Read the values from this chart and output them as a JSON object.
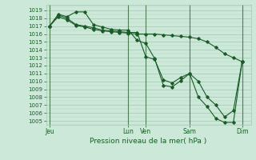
{
  "title": "Pression niveau de la mer( hPa )",
  "background_color": "#cce8d8",
  "grid_color_major": "#a0c8b0",
  "grid_color_minor": "#b8d8c4",
  "line_color": "#1a5c28",
  "vline_color": "#2a5c2a",
  "ylim": [
    1004.5,
    1019.7
  ],
  "yticks": [
    1005,
    1006,
    1007,
    1008,
    1009,
    1010,
    1011,
    1012,
    1013,
    1014,
    1015,
    1016,
    1017,
    1018,
    1019
  ],
  "xtick_labels": [
    "Jeu",
    "Lun",
    "Ven",
    "Sam",
    "Dim"
  ],
  "xtick_positions": [
    0,
    45,
    55,
    80,
    110
  ],
  "xlim": [
    -2,
    115
  ],
  "vline_positions": [
    0,
    45,
    55,
    80,
    110
  ],
  "line1_x": [
    0,
    5,
    10,
    15,
    20,
    25,
    30,
    35,
    40,
    45,
    50,
    55,
    60,
    65,
    70,
    75,
    80,
    85,
    90,
    95,
    100,
    105,
    110
  ],
  "line1_y": [
    1017.0,
    1018.5,
    1018.2,
    1018.8,
    1018.8,
    1017.2,
    1016.9,
    1016.6,
    1016.5,
    1016.5,
    1015.2,
    1014.8,
    1012.9,
    1009.5,
    1009.3,
    1010.1,
    1011.0,
    1008.0,
    1006.8,
    1005.3,
    1004.8,
    1004.8,
    1012.5
  ],
  "line2_x": [
    0,
    5,
    10,
    15,
    20,
    25,
    30,
    35,
    40,
    45,
    50,
    55,
    60,
    65,
    70,
    75,
    80,
    85,
    90,
    95,
    100,
    105,
    110
  ],
  "line2_y": [
    1017.0,
    1018.4,
    1018.0,
    1017.2,
    1017.0,
    1016.8,
    1016.5,
    1016.4,
    1016.3,
    1016.2,
    1016.2,
    1013.1,
    1012.8,
    1010.2,
    1009.8,
    1010.5,
    1011.0,
    1010.0,
    1008.0,
    1007.0,
    1005.5,
    1006.3,
    1012.5
  ],
  "line3_x": [
    0,
    5,
    10,
    15,
    20,
    25,
    30,
    35,
    40,
    45,
    50,
    55,
    60,
    65,
    70,
    75,
    80,
    85,
    90,
    95,
    100,
    105,
    110
  ],
  "line3_y": [
    1017.0,
    1018.2,
    1017.8,
    1017.1,
    1016.9,
    1016.6,
    1016.4,
    1016.3,
    1016.2,
    1016.1,
    1016.0,
    1016.0,
    1016.0,
    1015.9,
    1015.8,
    1015.7,
    1015.6,
    1015.4,
    1015.0,
    1014.3,
    1013.5,
    1013.0,
    1012.5
  ]
}
